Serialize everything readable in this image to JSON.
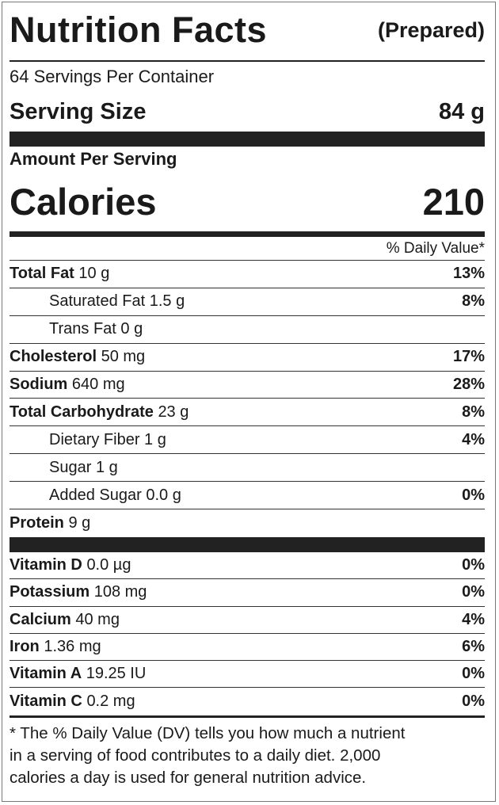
{
  "header": {
    "title": "Nutrition Facts",
    "subtitle": "(Prepared)",
    "servings": "64 Servings Per Container",
    "serving_size_label": "Serving Size",
    "serving_size": "84 g"
  },
  "calories": {
    "heading": "Amount Per Serving",
    "label": "Calories",
    "value": "210"
  },
  "dv_heading": "% Daily Value*",
  "nutrients": [
    {
      "name": "Total Fat",
      "amount": "10 g",
      "dv": "13%",
      "bold": true
    },
    {
      "name": "Saturated Fat",
      "amount": "1.5 g",
      "dv": "8%",
      "indent": true
    },
    {
      "name": "Trans Fat",
      "amount": "0 g",
      "indent": true
    },
    {
      "name": "Cholesterol",
      "amount": "50 mg",
      "dv": "17%",
      "bold": true
    },
    {
      "name": "Sodium",
      "amount": "640 mg",
      "dv": "28%",
      "bold": true
    },
    {
      "name": "Total Carbohydrate",
      "amount": "23 g",
      "dv": "8%",
      "bold": true
    },
    {
      "name": "Dietary Fiber",
      "amount": "1 g",
      "dv": "4%",
      "indent": true
    },
    {
      "name": "Sugar",
      "amount": "1 g",
      "indent": true
    },
    {
      "name": "Added Sugar",
      "amount": "0.0 g",
      "dv": "0%",
      "indent": true
    },
    {
      "name": "Protein",
      "amount": "9 g",
      "bold": true
    }
  ],
  "vitamins": [
    {
      "name": "Vitamin D",
      "amount": "0.0 µg",
      "dv": "0%",
      "bold": true
    },
    {
      "name": "Potassium",
      "amount": "108 mg",
      "dv": "0%",
      "bold": true
    },
    {
      "name": "Calcium",
      "amount": "40 mg",
      "dv": "4%",
      "bold": true
    },
    {
      "name": "Iron",
      "amount": "1.36 mg",
      "dv": "6%",
      "bold": true
    },
    {
      "name": "Vitamin A",
      "amount": "19.25 IU",
      "dv": "0%",
      "bold": true
    },
    {
      "name": "Vitamin C",
      "amount": "0.2 mg",
      "dv": "0%",
      "bold": true
    }
  ],
  "footnote": [
    "* The % Daily Value (DV) tells you how much a nutrient",
    "in a serving of food contributes to a daily diet. 2,000",
    "calories a day is used for general nutrition advice."
  ]
}
